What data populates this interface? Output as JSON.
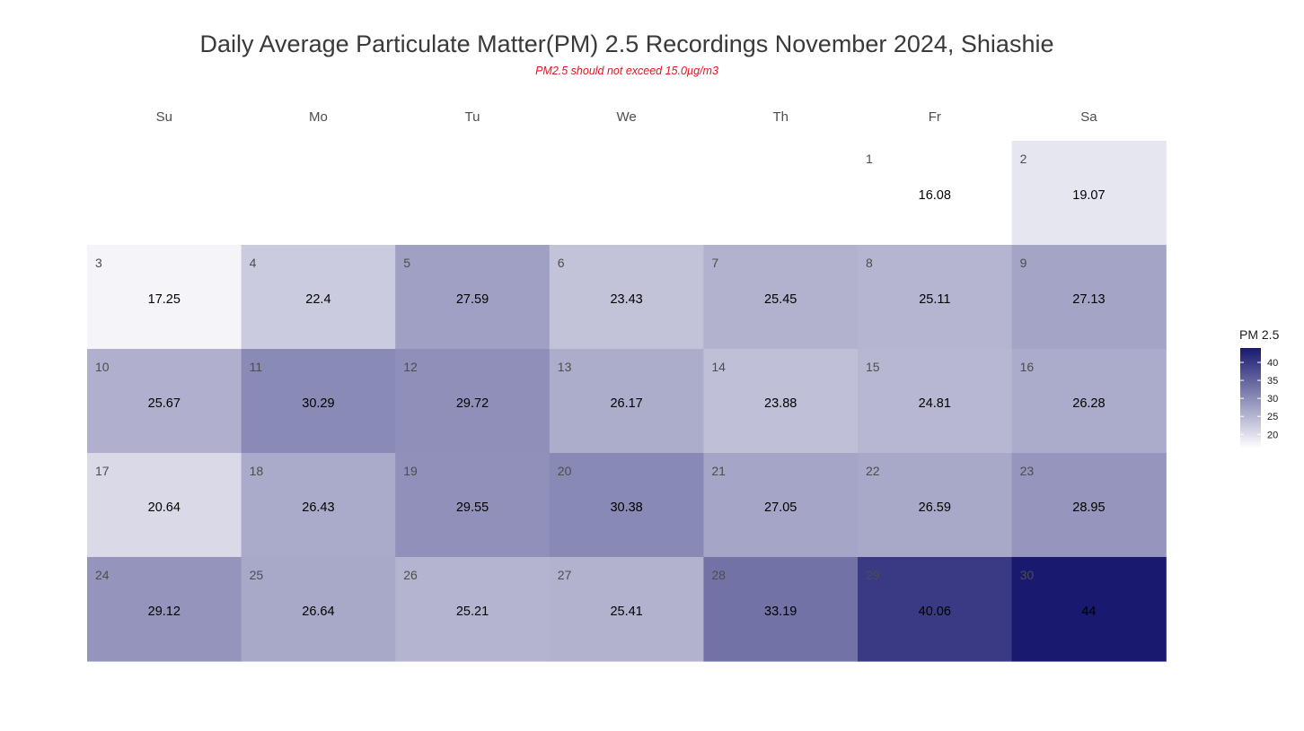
{
  "chart_data": {
    "type": "heatmap",
    "title": "Daily Average Particulate Matter(PM) 2.5 Recordings November 2024,  Shiashie",
    "subtitle": "PM2.5 should not exceed 15.0µg/m3",
    "weekdays": [
      "Su",
      "Mo",
      "Tu",
      "We",
      "Th",
      "Fr",
      "Sa"
    ],
    "first_weekday_index": 5,
    "days": [
      {
        "day": "1",
        "value": 16.08,
        "label": "16.08"
      },
      {
        "day": "2",
        "value": 19.07,
        "label": "19.07"
      },
      {
        "day": "3",
        "value": 17.25,
        "label": "17.25"
      },
      {
        "day": "4",
        "value": 22.4,
        "label": "22.4"
      },
      {
        "day": "5",
        "value": 27.59,
        "label": "27.59"
      },
      {
        "day": "6",
        "value": 23.43,
        "label": "23.43"
      },
      {
        "day": "7",
        "value": 25.45,
        "label": "25.45"
      },
      {
        "day": "8",
        "value": 25.11,
        "label": "25.11"
      },
      {
        "day": "9",
        "value": 27.13,
        "label": "27.13"
      },
      {
        "day": "10",
        "value": 25.67,
        "label": "25.67"
      },
      {
        "day": "11",
        "value": 30.29,
        "label": "30.29"
      },
      {
        "day": "12",
        "value": 29.72,
        "label": "29.72"
      },
      {
        "day": "13",
        "value": 26.17,
        "label": "26.17"
      },
      {
        "day": "14",
        "value": 23.88,
        "label": "23.88"
      },
      {
        "day": "15",
        "value": 24.81,
        "label": "24.81"
      },
      {
        "day": "16",
        "value": 26.28,
        "label": "26.28"
      },
      {
        "day": "17",
        "value": 20.64,
        "label": "20.64"
      },
      {
        "day": "18",
        "value": 26.43,
        "label": "26.43"
      },
      {
        "day": "19",
        "value": 29.55,
        "label": "29.55"
      },
      {
        "day": "20",
        "value": 30.38,
        "label": "30.38"
      },
      {
        "day": "21",
        "value": 27.05,
        "label": "27.05"
      },
      {
        "day": "22",
        "value": 26.59,
        "label": "26.59"
      },
      {
        "day": "23",
        "value": 28.95,
        "label": "28.95"
      },
      {
        "day": "24",
        "value": 29.12,
        "label": "29.12"
      },
      {
        "day": "25",
        "value": 26.64,
        "label": "26.64"
      },
      {
        "day": "26",
        "value": 25.21,
        "label": "25.21"
      },
      {
        "day": "27",
        "value": 25.41,
        "label": "25.41"
      },
      {
        "day": "28",
        "value": 33.19,
        "label": "33.19"
      },
      {
        "day": "29",
        "value": 40.06,
        "label": "40.06"
      },
      {
        "day": "30",
        "value": 44,
        "label": "44"
      }
    ],
    "legend": {
      "title": "PM 2.5",
      "position": "right",
      "range": [
        16.08,
        44
      ],
      "ticks": [
        "20",
        "25",
        "30",
        "35",
        "40"
      ],
      "color_low": "#ffffff",
      "color_high": "#191970"
    }
  }
}
